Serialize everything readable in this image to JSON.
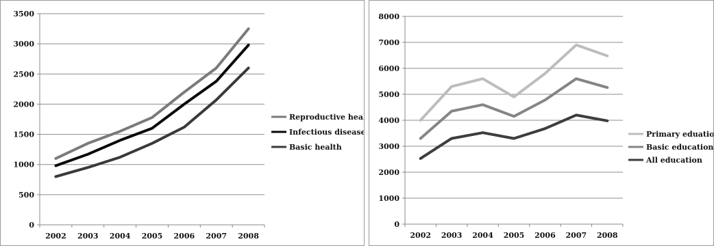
{
  "chart_data": [
    {
      "type": "line",
      "title": "",
      "xlabel": "",
      "ylabel": "",
      "categories": [
        "2002",
        "2003",
        "2004",
        "2005",
        "2006",
        "2007",
        "2008"
      ],
      "ylim": [
        0,
        3500
      ],
      "yticks": [
        0,
        500,
        1000,
        1500,
        2000,
        2500,
        3000,
        3500
      ],
      "grid": true,
      "legend": "right",
      "series": [
        {
          "name": "Reproductive health",
          "color": "#7a7a7a",
          "values": [
            1100,
            1350,
            1550,
            1780,
            2200,
            2600,
            3250
          ]
        },
        {
          "name": "Infectious diseases",
          "color": "#0a0a0a",
          "values": [
            980,
            1170,
            1400,
            1600,
            2000,
            2380,
            2980
          ]
        },
        {
          "name": "Basic health",
          "color": "#3a3a3a",
          "values": [
            800,
            950,
            1120,
            1350,
            1620,
            2070,
            2600
          ]
        }
      ]
    },
    {
      "type": "line",
      "title": "",
      "xlabel": "",
      "ylabel": "",
      "categories": [
        "2002",
        "2003",
        "2004",
        "2005",
        "2006",
        "2007",
        "2008"
      ],
      "ylim": [
        0,
        8000
      ],
      "yticks": [
        0,
        1000,
        2000,
        3000,
        4000,
        5000,
        6000,
        7000,
        8000
      ],
      "grid": true,
      "legend": "right",
      "series": [
        {
          "name": "Primary eduation",
          "color": "#bdbdbd",
          "values": [
            4000,
            5300,
            5600,
            4900,
            5800,
            6900,
            6480
          ]
        },
        {
          "name": "Basic education",
          "color": "#858585",
          "values": [
            3300,
            4350,
            4600,
            4150,
            4780,
            5600,
            5260
          ]
        },
        {
          "name": "All education",
          "color": "#3d3d3d",
          "values": [
            2530,
            3300,
            3520,
            3300,
            3680,
            4200,
            3980
          ]
        }
      ]
    }
  ]
}
